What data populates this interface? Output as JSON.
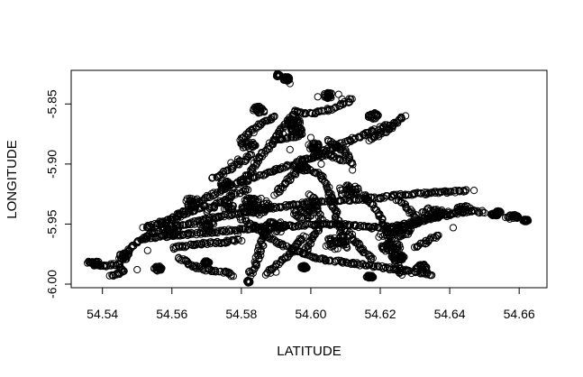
{
  "chart_data": {
    "type": "scatter",
    "title": "",
    "xlabel": "LATITUDE",
    "ylabel": "LONGITUDE",
    "xlim": [
      54.531,
      54.668
    ],
    "ylim": [
      -6.003,
      -5.822
    ],
    "x_ticks": [
      54.54,
      54.56,
      54.58,
      54.6,
      54.62,
      54.64,
      54.66
    ],
    "x_tick_labels": [
      "54.54",
      "54.56",
      "54.58",
      "54.60",
      "54.62",
      "54.64",
      "54.66"
    ],
    "y_ticks": [
      -6.0,
      -5.95,
      -5.9,
      -5.85
    ],
    "y_tick_labels": [
      "-6.00",
      "-5.95",
      "-5.90",
      "-5.85"
    ],
    "grid": false,
    "marker": "open-circle",
    "marker_color": "#000000",
    "tracks": [
      [
        [
          54.5355,
          -5.982
        ],
        [
          54.54,
          -5.985
        ],
        [
          54.545,
          -5.983
        ],
        [
          54.546,
          -5.99
        ],
        [
          54.542,
          -5.994
        ]
      ],
      [
        [
          54.547,
          -5.975
        ],
        [
          54.55,
          -5.965
        ],
        [
          54.555,
          -5.957
        ],
        [
          54.56,
          -5.952
        ],
        [
          54.565,
          -5.95
        ],
        [
          54.57,
          -5.946
        ],
        [
          54.575,
          -5.943
        ],
        [
          54.58,
          -5.941
        ],
        [
          54.585,
          -5.938
        ],
        [
          54.59,
          -5.936
        ],
        [
          54.595,
          -5.934
        ],
        [
          54.6,
          -5.932
        ],
        [
          54.605,
          -5.931
        ],
        [
          54.61,
          -5.93
        ],
        [
          54.615,
          -5.929
        ],
        [
          54.62,
          -5.928
        ],
        [
          54.625,
          -5.926
        ],
        [
          54.63,
          -5.925
        ],
        [
          54.635,
          -5.924
        ],
        [
          54.64,
          -5.923
        ],
        [
          54.645,
          -5.922
        ]
      ],
      [
        [
          54.552,
          -5.962
        ],
        [
          54.558,
          -5.96
        ],
        [
          54.563,
          -5.959
        ],
        [
          54.57,
          -5.957
        ],
        [
          54.578,
          -5.955
        ],
        [
          54.585,
          -5.953
        ],
        [
          54.592,
          -5.952
        ],
        [
          54.598,
          -5.951
        ],
        [
          54.605,
          -5.95
        ],
        [
          54.612,
          -5.951
        ],
        [
          54.618,
          -5.953
        ],
        [
          54.624,
          -5.952
        ],
        [
          54.63,
          -5.948
        ],
        [
          54.635,
          -5.945
        ],
        [
          54.64,
          -5.942
        ],
        [
          54.645,
          -5.939
        ],
        [
          54.65,
          -5.94
        ]
      ],
      [
        [
          54.552,
          -5.953
        ],
        [
          54.556,
          -5.95
        ],
        [
          54.56,
          -5.945
        ],
        [
          54.565,
          -5.937
        ],
        [
          54.57,
          -5.928
        ],
        [
          54.575,
          -5.92
        ],
        [
          54.58,
          -5.915
        ],
        [
          54.585,
          -5.91
        ],
        [
          54.59,
          -5.905
        ],
        [
          54.595,
          -5.9
        ],
        [
          54.6,
          -5.895
        ],
        [
          54.605,
          -5.888
        ],
        [
          54.61,
          -5.882
        ],
        [
          54.615,
          -5.876
        ],
        [
          54.62,
          -5.87
        ],
        [
          54.624,
          -5.866
        ]
      ],
      [
        [
          54.58,
          -5.915
        ],
        [
          54.583,
          -5.905
        ],
        [
          54.585,
          -5.895
        ],
        [
          54.588,
          -5.886
        ],
        [
          54.59,
          -5.878
        ],
        [
          54.592,
          -5.87
        ],
        [
          54.594,
          -5.862
        ],
        [
          54.596,
          -5.855
        ]
      ],
      [
        [
          54.596,
          -5.857
        ],
        [
          54.6,
          -5.858
        ],
        [
          54.604,
          -5.856
        ],
        [
          54.607,
          -5.853
        ],
        [
          54.61,
          -5.849
        ],
        [
          54.612,
          -5.845
        ]
      ],
      [
        [
          54.58,
          -5.88
        ],
        [
          54.583,
          -5.873
        ],
        [
          54.586,
          -5.866
        ],
        [
          54.59,
          -5.86
        ]
      ],
      [
        [
          54.572,
          -5.912
        ],
        [
          54.576,
          -5.905
        ],
        [
          54.58,
          -5.898
        ],
        [
          54.583,
          -5.892
        ]
      ],
      [
        [
          54.605,
          -5.88
        ],
        [
          54.61,
          -5.89
        ],
        [
          54.612,
          -5.902
        ]
      ],
      [
        [
          54.617,
          -5.88
        ],
        [
          54.622,
          -5.872
        ],
        [
          54.625,
          -5.865
        ],
        [
          54.627,
          -5.86
        ]
      ],
      [
        [
          54.6,
          -5.905
        ],
        [
          54.603,
          -5.91
        ],
        [
          54.605,
          -5.92
        ],
        [
          54.606,
          -5.93
        ],
        [
          54.607,
          -5.94
        ],
        [
          54.608,
          -5.95
        ],
        [
          54.609,
          -5.96
        ],
        [
          54.61,
          -5.97
        ]
      ],
      [
        [
          54.58,
          -5.945
        ],
        [
          54.585,
          -5.955
        ],
        [
          54.59,
          -5.965
        ],
        [
          54.595,
          -5.972
        ],
        [
          54.6,
          -5.977
        ],
        [
          54.605,
          -5.98
        ],
        [
          54.61,
          -5.982
        ],
        [
          54.615,
          -5.984
        ],
        [
          54.62,
          -5.986
        ],
        [
          54.625,
          -5.988
        ],
        [
          54.63,
          -5.99
        ],
        [
          54.635,
          -5.992
        ]
      ],
      [
        [
          54.587,
          -5.955
        ],
        [
          54.586,
          -5.965
        ],
        [
          54.585,
          -5.975
        ],
        [
          54.584,
          -5.985
        ],
        [
          54.582,
          -5.993
        ]
      ],
      [
        [
          54.598,
          -5.96
        ],
        [
          54.596,
          -5.968
        ],
        [
          54.593,
          -5.977
        ],
        [
          54.59,
          -5.985
        ],
        [
          54.587,
          -5.992
        ]
      ],
      [
        [
          54.6,
          -5.925
        ],
        [
          54.602,
          -5.935
        ],
        [
          54.603,
          -5.945
        ],
        [
          54.602,
          -5.955
        ],
        [
          54.6,
          -5.965
        ],
        [
          54.598,
          -5.975
        ]
      ],
      [
        [
          54.615,
          -5.925
        ],
        [
          54.618,
          -5.935
        ],
        [
          54.62,
          -5.945
        ],
        [
          54.622,
          -5.955
        ],
        [
          54.623,
          -5.965
        ],
        [
          54.624,
          -5.975
        ],
        [
          54.625,
          -5.985
        ],
        [
          54.626,
          -5.993
        ]
      ],
      [
        [
          54.62,
          -5.96
        ],
        [
          54.625,
          -5.955
        ],
        [
          54.63,
          -5.95
        ],
        [
          54.635,
          -5.944
        ],
        [
          54.64,
          -5.94
        ]
      ],
      [
        [
          54.625,
          -5.93
        ],
        [
          54.628,
          -5.937
        ],
        [
          54.63,
          -5.944
        ],
        [
          54.632,
          -5.95
        ]
      ],
      [
        [
          54.56,
          -5.97
        ],
        [
          54.565,
          -5.968
        ],
        [
          54.57,
          -5.966
        ],
        [
          54.575,
          -5.965
        ],
        [
          54.58,
          -5.963
        ]
      ],
      [
        [
          54.562,
          -5.978
        ],
        [
          54.566,
          -5.985
        ],
        [
          54.57,
          -5.988
        ],
        [
          54.575,
          -5.99
        ],
        [
          54.578,
          -5.993
        ]
      ],
      [
        [
          54.57,
          -5.94
        ],
        [
          54.575,
          -5.93
        ],
        [
          54.578,
          -5.925
        ],
        [
          54.582,
          -5.92
        ]
      ],
      [
        [
          54.59,
          -5.925
        ],
        [
          54.593,
          -5.915
        ],
        [
          54.596,
          -5.905
        ],
        [
          54.598,
          -5.895
        ]
      ],
      [
        [
          54.59,
          -5.88
        ],
        [
          54.595,
          -5.878
        ],
        [
          54.598,
          -5.875
        ]
      ],
      [
        [
          54.6,
          -5.895
        ],
        [
          54.605,
          -5.892
        ],
        [
          54.61,
          -5.898
        ]
      ],
      [
        [
          54.61,
          -5.955
        ],
        [
          54.613,
          -5.965
        ],
        [
          54.615,
          -5.972
        ],
        [
          54.618,
          -5.98
        ]
      ],
      [
        [
          54.63,
          -5.97
        ],
        [
          54.634,
          -5.964
        ],
        [
          54.637,
          -5.958
        ]
      ],
      [
        [
          54.57,
          -5.935
        ],
        [
          54.565,
          -5.94
        ],
        [
          54.56,
          -5.946
        ],
        [
          54.556,
          -5.95
        ]
      ]
    ],
    "clusters": [
      [
        54.5906,
        -5.826,
        0.0006,
        0.0014
      ],
      [
        54.593,
        -5.829,
        0.001,
        0.002
      ],
      [
        54.546,
        -5.977,
        0.0015,
        0.003
      ],
      [
        54.556,
        -5.987,
        0.0016,
        0.002
      ],
      [
        54.57,
        -5.982,
        0.0008,
        0.0015
      ],
      [
        54.576,
        -5.935,
        0.002,
        0.005
      ],
      [
        54.595,
        -5.865,
        0.002,
        0.003
      ],
      [
        54.596,
        -5.872,
        0.002,
        0.003
      ],
      [
        54.605,
        -5.843,
        0.0015,
        0.0025
      ],
      [
        54.618,
        -5.86,
        0.0015,
        0.003
      ],
      [
        54.585,
        -5.855,
        0.002,
        0.003
      ],
      [
        54.582,
        -5.884,
        0.0025,
        0.003
      ],
      [
        54.598,
        -5.903,
        0.0015,
        0.003
      ],
      [
        54.601,
        -5.885,
        0.002,
        0.003
      ],
      [
        54.611,
        -5.922,
        0.003,
        0.005
      ],
      [
        54.598,
        -5.94,
        0.003,
        0.006
      ],
      [
        54.584,
        -5.935,
        0.004,
        0.008
      ],
      [
        54.566,
        -5.932,
        0.002,
        0.005
      ],
      [
        54.56,
        -5.956,
        0.002,
        0.004
      ],
      [
        54.626,
        -5.956,
        0.003,
        0.005
      ],
      [
        54.635,
        -5.94,
        0.003,
        0.004
      ],
      [
        54.644,
        -5.937,
        0.002,
        0.003
      ],
      [
        54.653,
        -5.942,
        0.0012,
        0.0012
      ],
      [
        54.658,
        -5.944,
        0.002,
        0.002
      ],
      [
        54.662,
        -5.947,
        0.001,
        0.001
      ],
      [
        54.654,
        -5.94,
        0.0008,
        0.001
      ],
      [
        54.623,
        -5.97,
        0.003,
        0.005
      ],
      [
        54.607,
        -5.966,
        0.003,
        0.005
      ],
      [
        54.59,
        -5.952,
        0.003,
        0.005
      ],
      [
        54.632,
        -5.986,
        0.002,
        0.003
      ],
      [
        54.538,
        -5.983,
        0.0015,
        0.002
      ],
      [
        54.582,
        -5.998,
        0.0005,
        0.001
      ],
      [
        54.598,
        -5.986,
        0.001,
        0.0015
      ],
      [
        54.617,
        -5.994,
        0.001,
        0.0015
      ],
      [
        54.625,
        -5.978,
        0.002,
        0.003
      ],
      [
        54.57,
        -5.951,
        0.002,
        0.004
      ],
      [
        54.575,
        -5.917,
        0.002,
        0.003
      ]
    ],
    "outliers": [
      [
        54.592,
        -5.875
      ],
      [
        54.595,
        -5.878
      ],
      [
        54.604,
        -5.89
      ],
      [
        54.608,
        -5.842
      ],
      [
        54.609,
        -5.846
      ],
      [
        54.597,
        -5.896
      ],
      [
        54.564,
        -5.98
      ],
      [
        54.567,
        -5.987
      ],
      [
        54.55,
        -5.988
      ],
      [
        54.594,
        -5.833
      ],
      [
        54.602,
        -5.844
      ],
      [
        54.572,
        -5.95
      ],
      [
        54.579,
        -5.958
      ],
      [
        54.63,
        -5.95
      ],
      [
        54.641,
        -5.953
      ],
      [
        54.647,
        -5.922
      ],
      [
        54.644,
        -5.922
      ],
      [
        54.553,
        -5.972
      ],
      [
        54.579,
        -5.896
      ],
      [
        54.577,
        -5.899
      ],
      [
        54.626,
        -5.976
      ],
      [
        54.629,
        -5.991
      ],
      [
        54.6,
        -5.878
      ],
      [
        54.594,
        -5.888
      ],
      [
        54.588,
        -5.988
      ],
      [
        54.59,
        -5.99
      ],
      [
        54.612,
        -5.905
      ],
      [
        54.603,
        -5.9
      ]
    ]
  }
}
